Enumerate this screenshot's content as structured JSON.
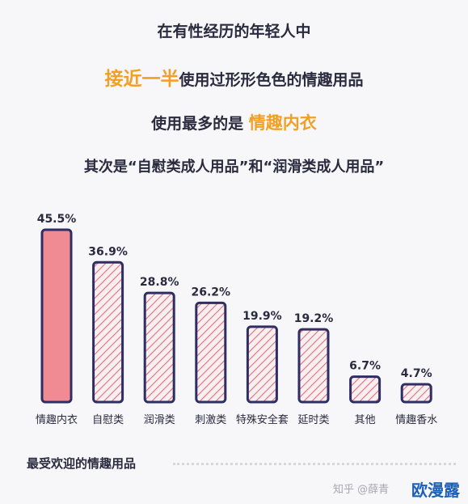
{
  "header": {
    "line1": "在有性经历的年轻人中",
    "line2_highlight": "接近一半",
    "line2_rest": "使用过形形色色的情趣用品",
    "line3_prefix": "使用最多的是",
    "line3_highlight": "情趣内衣",
    "line4": "其次是“自慰类成人用品”和“润滑类成人用品”"
  },
  "footer": {
    "caption": "最受欢迎的情趣用品",
    "credit": "知乎 @薛青",
    "site": "欧漫露"
  },
  "colors": {
    "accent": "#f2a024",
    "outline": "#2f2e63",
    "hatch": "#e0707c",
    "highlight_fill": "#f08a93"
  },
  "chart_data": {
    "type": "bar",
    "categories": [
      "情趣内衣",
      "自慰类",
      "润滑类",
      "刺激类",
      "特殊安全套",
      "延时类",
      "其他",
      "情趣香水"
    ],
    "values": [
      45.5,
      36.9,
      28.8,
      26.2,
      19.9,
      19.2,
      6.7,
      4.7
    ],
    "value_labels": [
      "45.5%",
      "36.9%",
      "28.8%",
      "26.2%",
      "19.9%",
      "19.2%",
      "6.7%",
      "4.7%"
    ],
    "highlighted_index": 0,
    "ylim": [
      0,
      45.5
    ],
    "grid": false,
    "title": "",
    "xlabel": "",
    "ylabel": ""
  }
}
